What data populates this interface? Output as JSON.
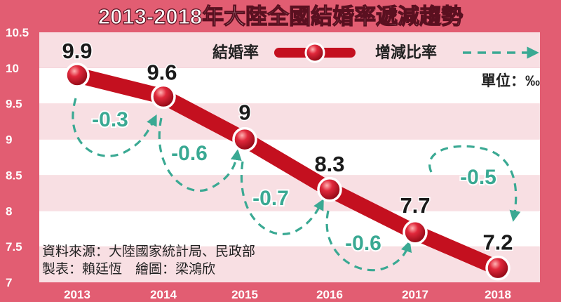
{
  "chart_data": {
    "type": "line",
    "title": "2013-2018年大陸全國結婚率遞減趨勢",
    "categories": [
      "2013",
      "2014",
      "2015",
      "2016",
      "2017",
      "2018"
    ],
    "series": [
      {
        "name": "結婚率",
        "values": [
          9.9,
          9.6,
          9,
          8.3,
          7.7,
          7.2
        ],
        "labels": [
          "9.9",
          "9.6",
          "9",
          "8.3",
          "7.7",
          "7.2"
        ]
      }
    ],
    "changes": {
      "name": "增減比率",
      "values": [
        "-0.3",
        "-0.6",
        "-0.7",
        "-0.6",
        "-0.5"
      ]
    },
    "ylim": [
      7,
      10.5
    ],
    "yticks": [
      "7",
      "7.5",
      "8",
      "8.5",
      "9",
      "9.5",
      "10",
      "10.5"
    ],
    "unit": "單位：‰",
    "legend_position": "top-right",
    "grid": "alternating horizontal bands",
    "source": "資料來源：大陸國家統計局、民政部",
    "credits": "製表：賴廷恆　繪圖：梁鴻欣",
    "colors": {
      "background": "#e25d72",
      "band_light": "#f8dfe3",
      "band_white": "#ffffff",
      "line": "#c4101f",
      "marker": "#d21a2b",
      "arrow": "#3aa993",
      "change_label": "#3aa993"
    }
  }
}
